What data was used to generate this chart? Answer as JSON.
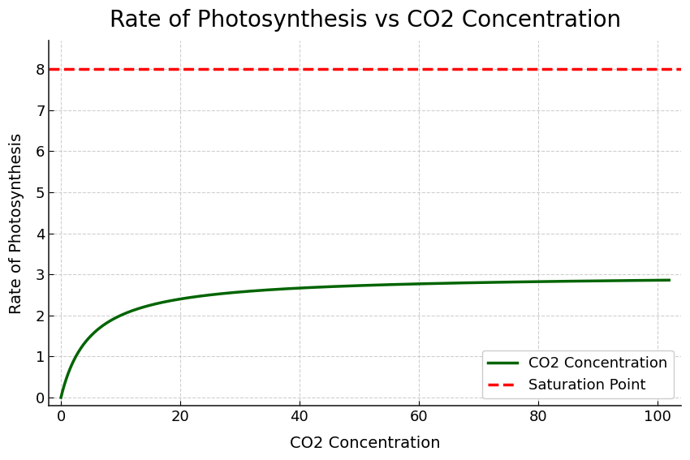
{
  "title": "Rate of Photosynthesis vs CO2 Concentration",
  "xlabel": "CO2 Concentration",
  "ylabel": "Rate of Photosynthesis",
  "xlim": [
    -2,
    104
  ],
  "ylim": [
    -0.2,
    8.7
  ],
  "saturation_value": 8.0,
  "curve_color": "#006400",
  "saturation_color": "#ff0000",
  "curve_label": "CO2 Concentration",
  "saturation_label": "Saturation Point",
  "curve_Vmax": 3.0,
  "curve_Km": 5.0,
  "grid_color": "#bbbbbb",
  "grid_linestyle": "--",
  "grid_alpha": 0.7,
  "title_fontsize": 20,
  "label_fontsize": 14,
  "tick_fontsize": 13,
  "legend_fontsize": 13,
  "curve_linewidth": 2.5,
  "saturation_linewidth": 2.5,
  "background_color": "#ffffff",
  "x_ticks": [
    0,
    20,
    40,
    60,
    80,
    100
  ],
  "y_ticks": [
    0,
    1,
    2,
    3,
    4,
    5,
    6,
    7,
    8
  ]
}
